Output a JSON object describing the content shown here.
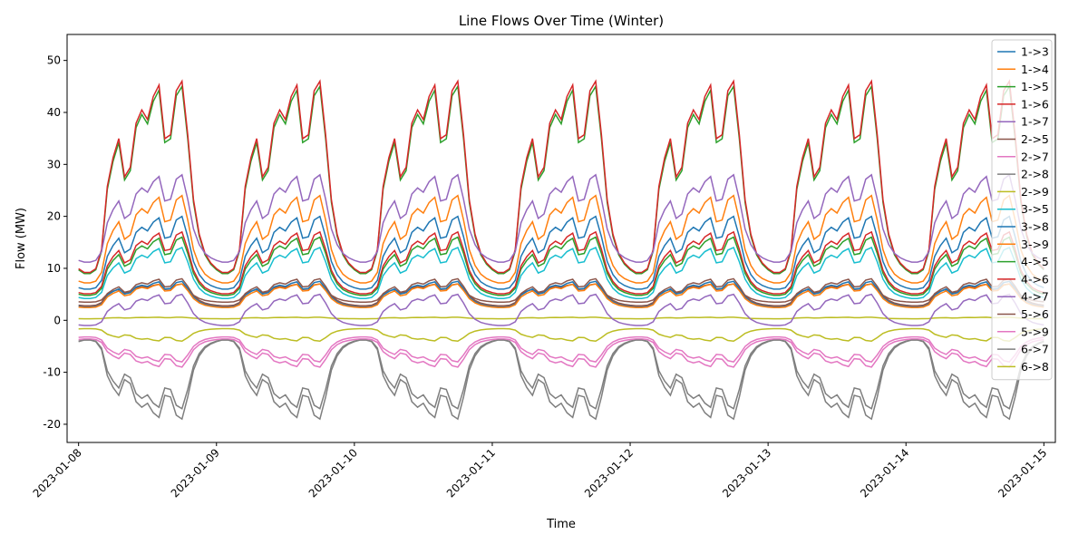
{
  "chart_data": {
    "type": "line",
    "title": "Line Flows Over Time (Winter)",
    "xlabel": "Time",
    "ylabel": "Flow (MW)",
    "xlim": [
      "2023-01-07 22:00",
      "2023-01-15 02:00"
    ],
    "ylim": [
      -23.5,
      55
    ],
    "yticks": [
      -20,
      -10,
      0,
      10,
      20,
      30,
      40,
      50
    ],
    "xticks": [
      "2023-01-08",
      "2023-01-09",
      "2023-01-10",
      "2023-01-11",
      "2023-01-12",
      "2023-01-13",
      "2023-01-14",
      "2023-01-15"
    ],
    "x_start": "2023-01-08 00:00",
    "x_step": "1 hour",
    "legend_position": "upper right",
    "grid": false,
    "series": [
      {
        "name": "1->3",
        "color": "#1f77b4",
        "amp": 20,
        "base": 0.3,
        "day_var": [
          1.0,
          1.0,
          1.0,
          1.0,
          1.0,
          1.0,
          1.0
        ]
      },
      {
        "name": "1->4",
        "color": "#ff7f0e",
        "amp": 24,
        "base": 0.3,
        "day_var": [
          1.0,
          1.0,
          1.0,
          1.0,
          1.0,
          1.0,
          1.0
        ]
      },
      {
        "name": "1->5",
        "color": "#2ca02c",
        "amp": 45,
        "base": 0.2,
        "day_var": [
          1.0,
          1.0,
          1.0,
          1.0,
          1.0,
          1.0,
          1.0
        ]
      },
      {
        "name": "1->6",
        "color": "#d62728",
        "amp": 46,
        "base": 0.2,
        "day_var": [
          1.0,
          1.0,
          1.0,
          1.0,
          1.0,
          1.0,
          1.0
        ]
      },
      {
        "name": "1->7",
        "color": "#9467bd",
        "amp": 28,
        "base": 0.4,
        "day_var": [
          1.0,
          1.0,
          1.0,
          1.0,
          1.0,
          1.0,
          1.0
        ]
      },
      {
        "name": "2->5",
        "color": "#8c564b",
        "amp": 7,
        "base": 0.5,
        "day_var": [
          1.0,
          1.0,
          1.0,
          1.0,
          1.0,
          1.0,
          1.0
        ]
      },
      {
        "name": "2->7",
        "color": "#e377c2",
        "amp": -8,
        "base": 0.4,
        "day_var": [
          1.0,
          1.0,
          1.0,
          1.0,
          1.0,
          1.0,
          1.0
        ]
      },
      {
        "name": "2->8",
        "color": "#7f7f7f",
        "amp": -17,
        "base": 0.22,
        "day_var": [
          1.0,
          1.0,
          1.0,
          1.0,
          1.0,
          1.0,
          1.0
        ]
      },
      {
        "name": "2->9",
        "color": "#bcbd22",
        "amp": 0.6,
        "base": 0.5,
        "day_var": [
          1.0,
          1.0,
          1.0,
          1.0,
          1.0,
          1.0,
          1.0
        ]
      },
      {
        "name": "3->5",
        "color": "#17becf",
        "amp": 14,
        "base": 0.3,
        "day_var": [
          1.0,
          1.0,
          1.0,
          1.0,
          1.0,
          1.0,
          1.0
        ]
      },
      {
        "name": "3->8",
        "color": "#1f77b4",
        "amp": 7.5,
        "base": 0.35,
        "day_var": [
          1.0,
          1.0,
          1.0,
          1.0,
          1.0,
          1.0,
          1.0
        ]
      },
      {
        "name": "3->9",
        "color": "#ff7f0e",
        "amp": 7,
        "base": 0.35,
        "day_var": [
          1.0,
          1.0,
          1.0,
          1.0,
          1.0,
          1.0,
          1.0
        ]
      },
      {
        "name": "4->5",
        "color": "#2ca02c",
        "amp": 16,
        "base": 0.3,
        "day_var": [
          1.0,
          1.0,
          1.0,
          1.0,
          1.0,
          1.0,
          1.0
        ]
      },
      {
        "name": "4->6",
        "color": "#d62728",
        "amp": 17,
        "base": 0.3,
        "day_var": [
          1.0,
          1.0,
          1.0,
          1.0,
          1.0,
          1.0,
          1.0
        ]
      },
      {
        "name": "4->7",
        "color": "#9467bd",
        "amp": 5,
        "base": -0.2,
        "day_var": [
          1.0,
          1.0,
          1.0,
          1.0,
          1.0,
          1.0,
          1.0
        ]
      },
      {
        "name": "5->6",
        "color": "#8c564b",
        "amp": 8,
        "base": 0.35,
        "day_var": [
          1.0,
          1.0,
          1.0,
          1.0,
          1.0,
          1.0,
          1.0
        ]
      },
      {
        "name": "5->9",
        "color": "#e377c2",
        "amp": -9,
        "base": 0.4,
        "day_var": [
          1.0,
          1.0,
          1.0,
          1.0,
          1.0,
          1.0,
          1.0
        ]
      },
      {
        "name": "6->7",
        "color": "#7f7f7f",
        "amp": -19,
        "base": 0.2,
        "day_var": [
          1.0,
          1.0,
          1.0,
          1.0,
          1.0,
          1.0,
          1.0
        ]
      },
      {
        "name": "6->8",
        "color": "#bcbd22",
        "amp": -4,
        "base": 0.4,
        "day_var": [
          1.0,
          1.0,
          1.0,
          1.0,
          1.0,
          1.0,
          1.0
        ]
      }
    ]
  }
}
